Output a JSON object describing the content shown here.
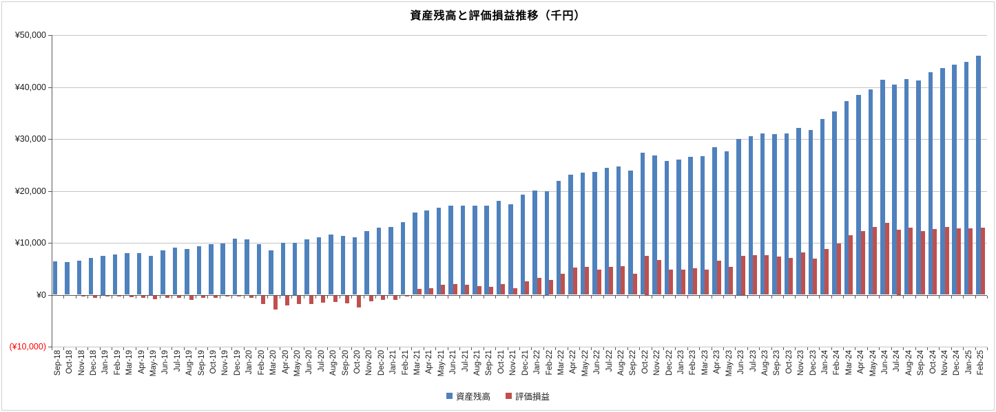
{
  "title": "資産残高と評価損益推移（千円）",
  "chart_data": {
    "type": "bar",
    "title": "資産残高と評価損益推移（千円）",
    "xlabel": "",
    "ylabel": "",
    "ylim": [
      -10000,
      50000
    ],
    "grid": true,
    "legend_position": "bottom",
    "x_tick_rotation": 90,
    "y_ticks": [
      {
        "value": 50000,
        "label": "¥50,000"
      },
      {
        "value": 40000,
        "label": "¥40,000"
      },
      {
        "value": 30000,
        "label": "¥30,000"
      },
      {
        "value": 20000,
        "label": "¥20,000"
      },
      {
        "value": 10000,
        "label": "¥10,000"
      },
      {
        "value": 0,
        "label": "¥0"
      },
      {
        "value": -10000,
        "label": "(¥10,000)"
      }
    ],
    "negative_tick_label_color": "#FF0000",
    "categories": [
      "Sep-18",
      "Oct-18",
      "Nov-18",
      "Dec-18",
      "Jan-19",
      "Feb-19",
      "Mar-19",
      "Apr-19",
      "May-19",
      "Jun-19",
      "Jul-19",
      "Aug-19",
      "Sep-19",
      "Oct-19",
      "Nov-19",
      "Dec-19",
      "Jan-20",
      "Feb-20",
      "Mar-20",
      "Apr-20",
      "May-20",
      "Jun-20",
      "Jul-20",
      "Aug-20",
      "Sep-20",
      "Oct-20",
      "Nov-20",
      "Dec-20",
      "Jan-21",
      "Feb-21",
      "Mar-21",
      "Apr-21",
      "May-21",
      "Jun-21",
      "Jul-21",
      "Aug-21",
      "Sep-21",
      "Oct-21",
      "Nov-21",
      "Dec-21",
      "Jan-22",
      "Feb-22",
      "Mar-22",
      "Apr-22",
      "May-22",
      "Jun-22",
      "Jul-22",
      "Aug-22",
      "Sep-22",
      "Oct-22",
      "Nov-22",
      "Dec-22",
      "Jan-23",
      "Feb-23",
      "Mar-23",
      "Apr-23",
      "May-23",
      "Jun-23",
      "Jul-23",
      "Aug-23",
      "Sep-23",
      "Oct-23",
      "Nov-23",
      "Dec-23",
      "Jan-24",
      "Feb-24",
      "Mar-24",
      "Apr-24",
      "May-24",
      "Jun-24",
      "Jul-24",
      "Aug-24",
      "Sep-24",
      "Oct-24",
      "Nov-24",
      "Dec-24",
      "Jan-25",
      "Feb-25"
    ],
    "series": [
      {
        "name": "資産残高",
        "color": "#4F81BD",
        "values": [
          6400,
          6300,
          6500,
          7100,
          7500,
          7800,
          8000,
          8000,
          7500,
          8500,
          9100,
          8800,
          9300,
          9700,
          9900,
          10800,
          10600,
          9700,
          8500,
          10000,
          10000,
          10600,
          11000,
          11600,
          11300,
          11100,
          12200,
          12900,
          13000,
          14000,
          15800,
          16200,
          16700,
          17100,
          17100,
          17200,
          17100,
          18100,
          17400,
          19300,
          20100,
          20000,
          21900,
          23100,
          23500,
          23700,
          24400,
          24700,
          23900,
          27400,
          26800,
          25700,
          26000,
          26500,
          26700,
          28400,
          27600,
          30000,
          30500,
          31000,
          30900,
          31000,
          32100,
          31700,
          33900,
          35300,
          37300,
          38500,
          39600,
          41400,
          40500,
          41500,
          41200,
          42800,
          43600,
          44300,
          44900,
          46000
        ]
      },
      {
        "name": "評価損益",
        "color": "#C0504D",
        "values": [
          0,
          0,
          -100,
          -500,
          -200,
          -200,
          -300,
          -400,
          -700,
          -400,
          -500,
          -800,
          -500,
          -400,
          -200,
          -200,
          -500,
          -1600,
          -2700,
          -1900,
          -1700,
          -1700,
          -1400,
          -1200,
          -1500,
          -2300,
          -1100,
          -800,
          -900,
          -200,
          1100,
          1300,
          1900,
          2000,
          1900,
          1700,
          1500,
          2100,
          1200,
          2600,
          3200,
          2800,
          4100,
          5200,
          5300,
          4900,
          5300,
          5500,
          4100,
          7500,
          6700,
          4900,
          4800,
          5100,
          4900,
          6500,
          5400,
          7500,
          7600,
          7600,
          7300,
          7100,
          8200,
          6900,
          8800,
          9900,
          11500,
          12300,
          13000,
          13900,
          12500,
          12900,
          12300,
          12600,
          13100,
          12800,
          12800,
          12900
        ]
      }
    ]
  }
}
